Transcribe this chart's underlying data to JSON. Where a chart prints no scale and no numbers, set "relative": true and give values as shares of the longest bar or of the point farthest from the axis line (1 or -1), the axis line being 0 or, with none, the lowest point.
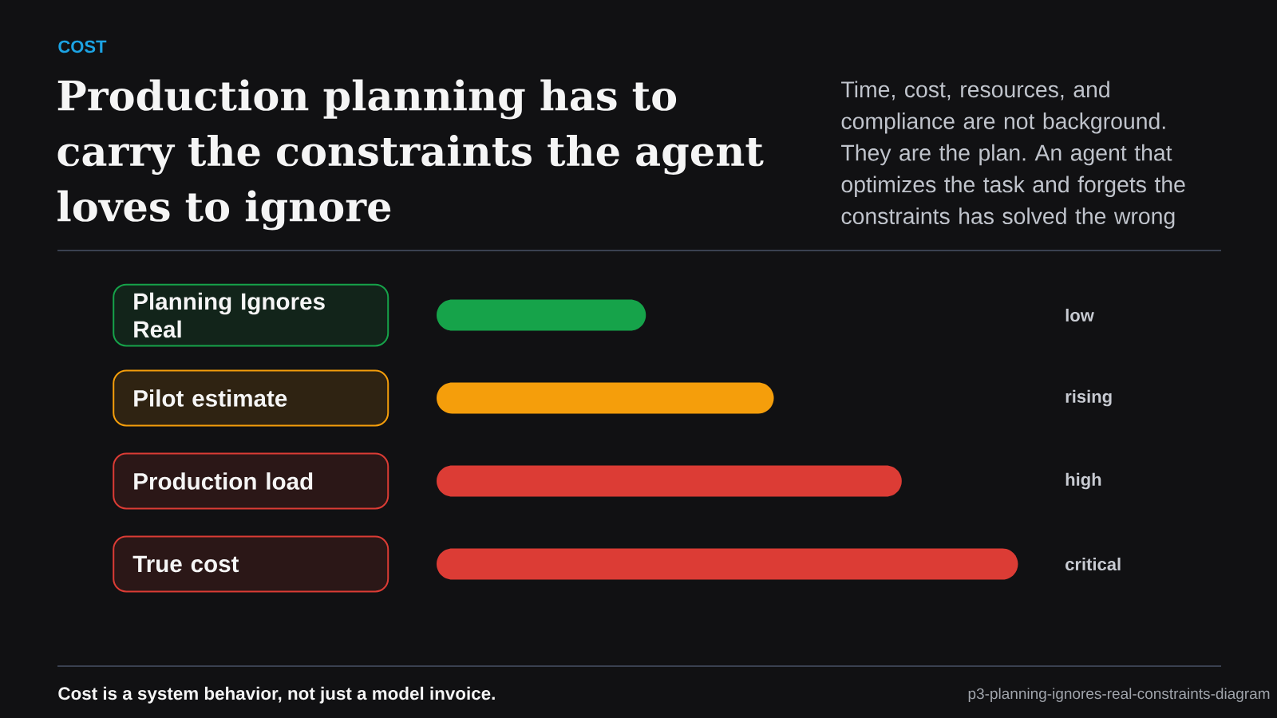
{
  "chart_data": {
    "type": "bar",
    "orientation": "horizontal",
    "relative": true,
    "title": "Production planning has to carry the constraints the agent loves to ignore",
    "subtitle": "Time, cost, resources, and compliance are not background. They are the plan. An agent that optimizes the task and forgets the constraints has solved the wrong",
    "categories": [
      "Planning Ignores Real",
      "Pilot estimate",
      "Production load",
      "True cost"
    ],
    "values": [
      0.36,
      0.58,
      0.8,
      1
    ],
    "colors": [
      "#16a34a",
      "#f59e0b",
      "#dc3c35",
      "#dc3c35"
    ],
    "annotations": [
      "COST",
      "Cost is a system behavior, not just a model invoice.",
      "p3-planning-ignores-real-constraints-diagram",
      "low",
      "rising",
      "high",
      "critical"
    ]
  }
}
